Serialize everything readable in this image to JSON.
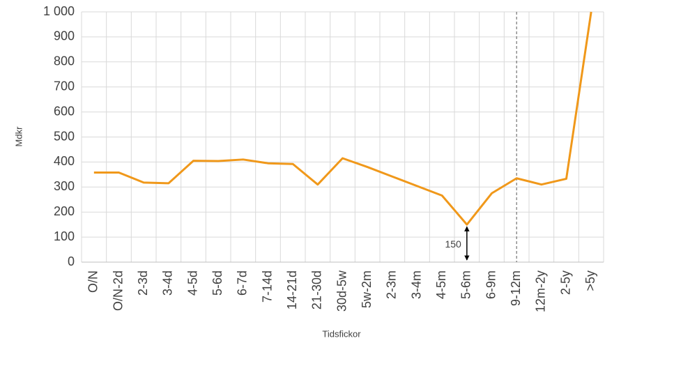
{
  "chart_data": {
    "type": "line",
    "x_label": "Tidsfickor",
    "y_label": "Mdkr",
    "categories": [
      "O/N",
      "O/N-2d",
      "2-3d",
      "3-4d",
      "4-5d",
      "5-6d",
      "6-7d",
      "7-14d",
      "14-21d",
      "21-30d",
      "30d-5w",
      "5w-2m",
      "2-3m",
      "3-4m",
      "4-5m",
      "5-6m",
      "6-9m",
      "9-12m",
      "12m-2y",
      "2-5y",
      ">5y"
    ],
    "series": [
      {
        "name": "Mdkr",
        "color": "#f0981a",
        "values": [
          358,
          358,
          318,
          315,
          405,
          404,
          410,
          395,
          392,
          310,
          415,
          380,
          342,
          304,
          266,
          150,
          275,
          335,
          310,
          333,
          1000
        ]
      }
    ],
    "ylim": [
      0,
      1000
    ],
    "yticks": [
      0,
      100,
      200,
      300,
      400,
      500,
      600,
      700,
      800,
      900,
      {
        "value": 1000,
        "label": "1 000"
      }
    ],
    "grid": true,
    "vline_at": "9-12m",
    "annotations": [
      {
        "text": "150",
        "category": "5-6m",
        "value": 150
      }
    ]
  }
}
